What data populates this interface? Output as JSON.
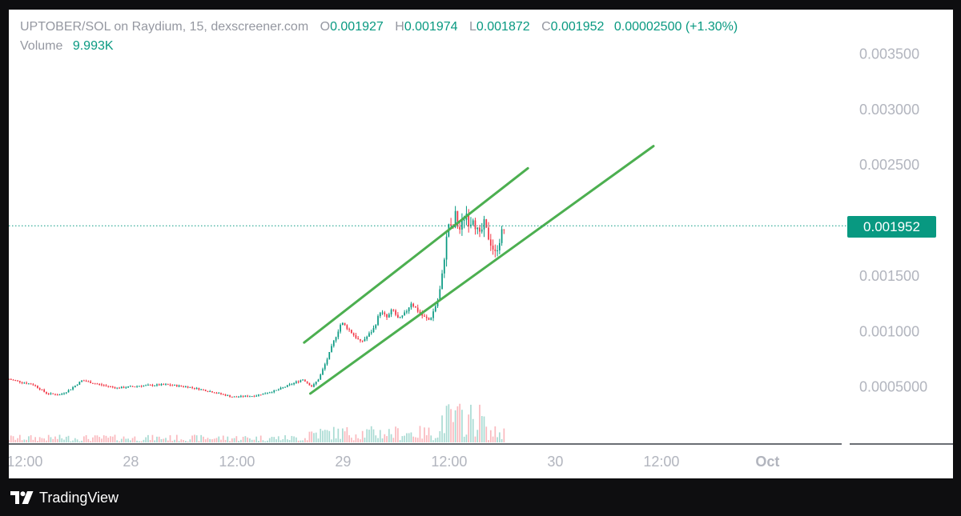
{
  "header": {
    "symbol": "UPTOBER/SOL on Raydium, 15, dexscreener.com",
    "open_label": "O",
    "open": "0.001927",
    "high_label": "H",
    "high": "0.001974",
    "low_label": "L",
    "low": "0.001872",
    "close_label": "C",
    "close": "0.001952",
    "change": "0.00002500 (+1.30%)",
    "volume_label": "Volume",
    "volume": "9.993K"
  },
  "last_price_tag": "0.001952",
  "brand": {
    "name": "TradingView",
    "icon": "tradingview-logo-icon"
  },
  "colors": {
    "up": "#089981",
    "down": "#f23645",
    "trendline": "#4caf50",
    "axis_text": "#b2b5be"
  },
  "chart_data": {
    "type": "candlestick",
    "title": "UPTOBER/SOL on Raydium, 15, dexscreener.com",
    "interval_minutes": 15,
    "price_axis_ticks": [
      "0.003500",
      "0.003000",
      "0.002500",
      "0.001500",
      "0.001000",
      "0.0005000"
    ],
    "y_range": [
      0,
      0.0039
    ],
    "x_ticks": [
      {
        "label": "12:00",
        "t": 12
      },
      {
        "label": "28",
        "t": 24
      },
      {
        "label": "12:00",
        "t": 36
      },
      {
        "label": "29",
        "t": 48
      },
      {
        "label": "12:00",
        "t": 60
      },
      {
        "label": "30",
        "t": 72
      },
      {
        "label": "12:00",
        "t": 84
      },
      {
        "label": "Oct",
        "t": 96
      }
    ],
    "x_range": [
      10.2,
      105.2
    ],
    "last_price": 0.001952,
    "price_path": [
      [
        10.2,
        0.00057
      ],
      [
        13.0,
        0.00052
      ],
      [
        14.5,
        0.00044
      ],
      [
        16.0,
        0.00043
      ],
      [
        17.0,
        0.00047
      ],
      [
        18.5,
        0.00056
      ],
      [
        20.5,
        0.00052
      ],
      [
        22.5,
        0.00049
      ],
      [
        25.0,
        0.00051
      ],
      [
        28.0,
        0.00052
      ],
      [
        30.5,
        0.0005
      ],
      [
        33.0,
        0.00046
      ],
      [
        35.5,
        0.00041
      ],
      [
        38.0,
        0.00042
      ],
      [
        40.5,
        0.00047
      ],
      [
        42.0,
        0.00052
      ],
      [
        43.5,
        0.00057
      ],
      [
        44.5,
        0.0005
      ],
      [
        45.3,
        0.00058
      ],
      [
        46.2,
        0.00075
      ],
      [
        47.0,
        0.00092
      ],
      [
        47.8,
        0.00108
      ],
      [
        48.5,
        0.00103
      ],
      [
        49.3,
        0.00096
      ],
      [
        50.0,
        0.0009
      ],
      [
        50.8,
        0.00096
      ],
      [
        51.5,
        0.00103
      ],
      [
        52.2,
        0.00118
      ],
      [
        53.0,
        0.00112
      ],
      [
        53.6,
        0.0012
      ],
      [
        54.3,
        0.0011
      ],
      [
        55.0,
        0.00116
      ],
      [
        55.7,
        0.00126
      ],
      [
        56.4,
        0.00119
      ],
      [
        57.1,
        0.00113
      ],
      [
        57.8,
        0.0011
      ],
      [
        58.2,
        0.00118
      ],
      [
        58.8,
        0.0013
      ],
      [
        59.2,
        0.0015
      ],
      [
        59.6,
        0.00178
      ],
      [
        60.0,
        0.002
      ],
      [
        60.3,
        0.00188
      ],
      [
        60.7,
        0.00205
      ],
      [
        61.1,
        0.0019
      ],
      [
        61.5,
        0.00198
      ],
      [
        61.9,
        0.00208
      ],
      [
        62.3,
        0.00196
      ],
      [
        62.7,
        0.00204
      ],
      [
        63.1,
        0.00192
      ],
      [
        63.5,
        0.00185
      ],
      [
        63.9,
        0.00198
      ],
      [
        64.3,
        0.00188
      ],
      [
        64.8,
        0.00178
      ],
      [
        65.2,
        0.0017
      ],
      [
        65.6,
        0.0018
      ],
      [
        66.0,
        0.0019
      ],
      [
        66.4,
        0.00195
      ]
    ],
    "volume_max": 10000,
    "trendlines": [
      {
        "name": "upper",
        "from": [
          43.6,
          0.0009
        ],
        "to": [
          68.9,
          0.00247
        ]
      },
      {
        "name": "lower",
        "from": [
          44.3,
          0.00044
        ],
        "to": [
          83.1,
          0.00267
        ]
      }
    ],
    "grid": false,
    "legend_position": "top-left"
  }
}
